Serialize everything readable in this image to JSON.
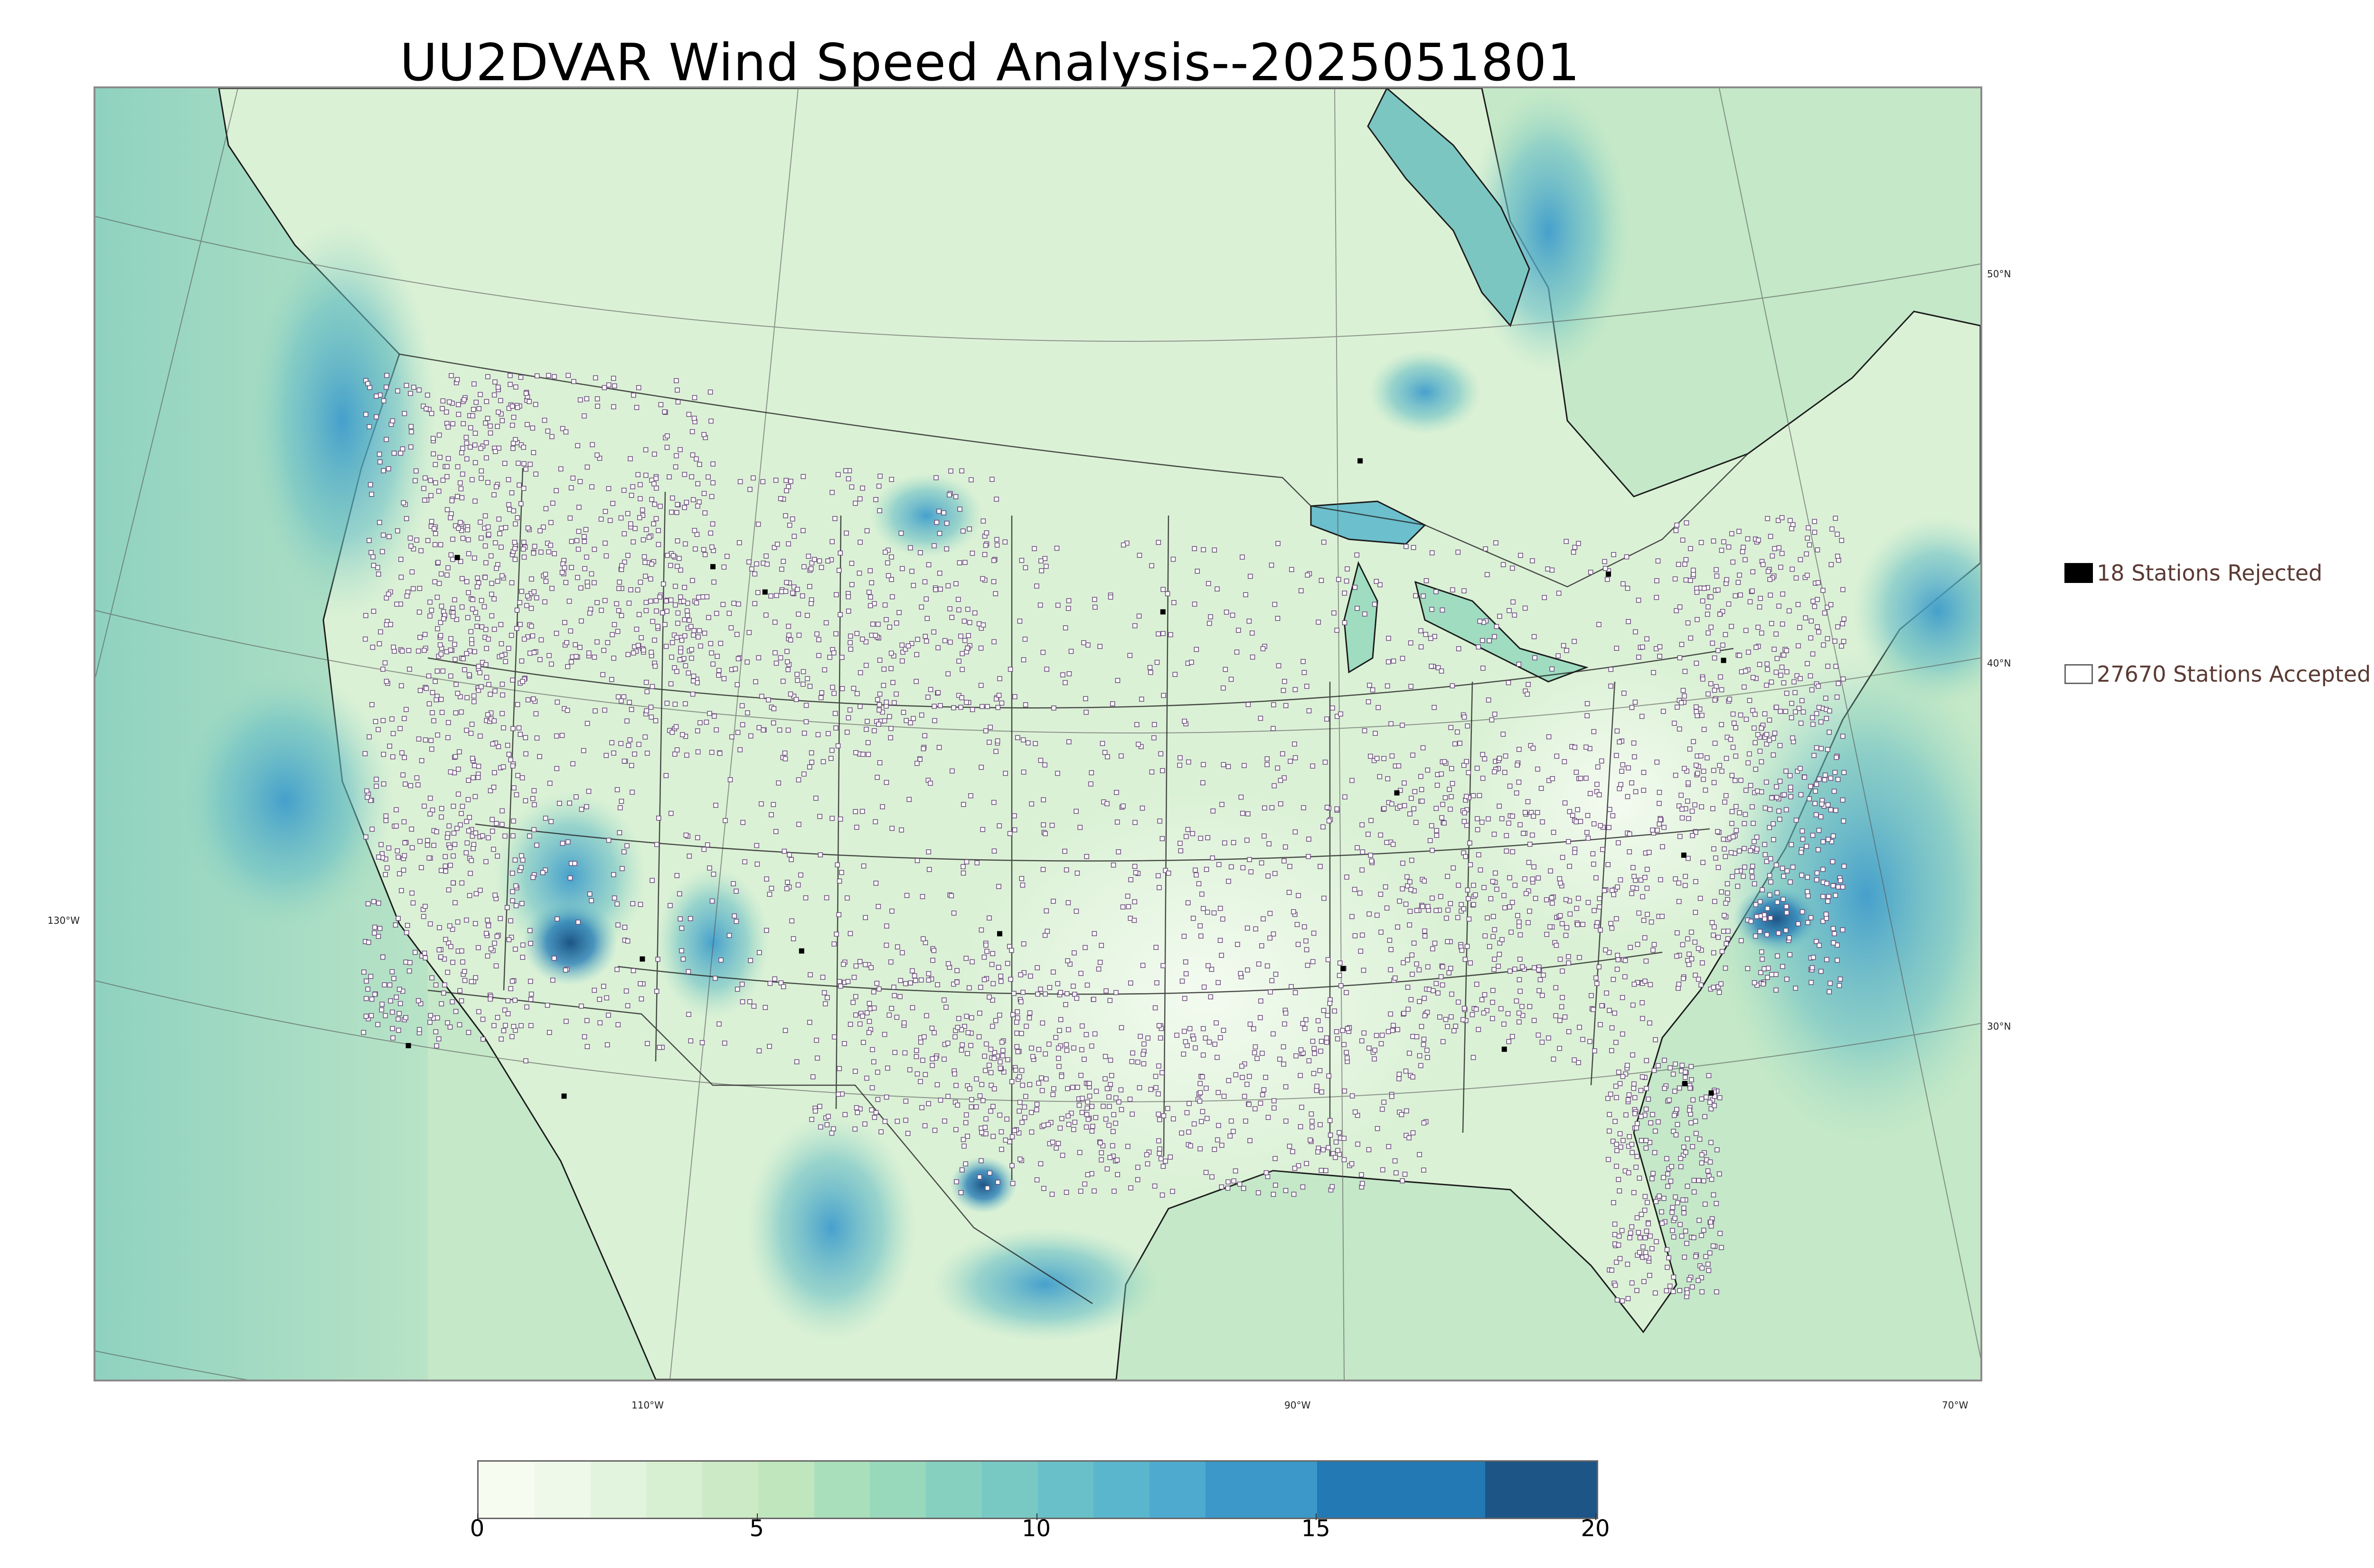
{
  "title": "UU2DVAR Wind Speed Analysis--2025051801",
  "map": {
    "colors": {
      "land_base": "#d6efd3",
      "ocean_base": "#b4e0c6",
      "coast": "#1c1c1c",
      "rejected": "#000000",
      "accepted_fill": "#ffffff",
      "accepted_edge": "#6a4a7a"
    },
    "lat_labels": [
      "50°N",
      "40°N",
      "30°N"
    ],
    "lon_labels": [
      "130°W",
      "110°W",
      "90°W",
      "70°W"
    ]
  },
  "legend": {
    "rejected_label": "18 Stations Rejected",
    "accepted_label": "27670 Stations Accepted"
  },
  "colorbar": {
    "ticks": [
      "0",
      "5",
      "10",
      "15",
      "20"
    ],
    "range": [
      0,
      20
    ],
    "bins": [
      {
        "from": 0,
        "to": 1,
        "color": "#f7fcf0"
      },
      {
        "from": 1,
        "to": 2,
        "color": "#eef9ea"
      },
      {
        "from": 2,
        "to": 3,
        "color": "#e3f4de"
      },
      {
        "from": 3,
        "to": 4,
        "color": "#d8f0d2"
      },
      {
        "from": 4,
        "to": 5,
        "color": "#cceac5"
      },
      {
        "from": 5,
        "to": 6,
        "color": "#bfe6bd"
      },
      {
        "from": 6,
        "to": 7,
        "color": "#aadfbb"
      },
      {
        "from": 7,
        "to": 8,
        "color": "#98d8bb"
      },
      {
        "from": 8,
        "to": 9,
        "color": "#86d0c0"
      },
      {
        "from": 9,
        "to": 10,
        "color": "#78c8c4"
      },
      {
        "from": 10,
        "to": 11,
        "color": "#6ac0c8"
      },
      {
        "from": 11,
        "to": 12,
        "color": "#5ab6cc"
      },
      {
        "from": 12,
        "to": 13,
        "color": "#4eaacf"
      },
      {
        "from": 13,
        "to": 15,
        "color": "#3b98c8"
      },
      {
        "from": 15,
        "to": 18,
        "color": "#2279b3"
      },
      {
        "from": 18,
        "to": 20,
        "color": "#1c5586"
      }
    ]
  }
}
